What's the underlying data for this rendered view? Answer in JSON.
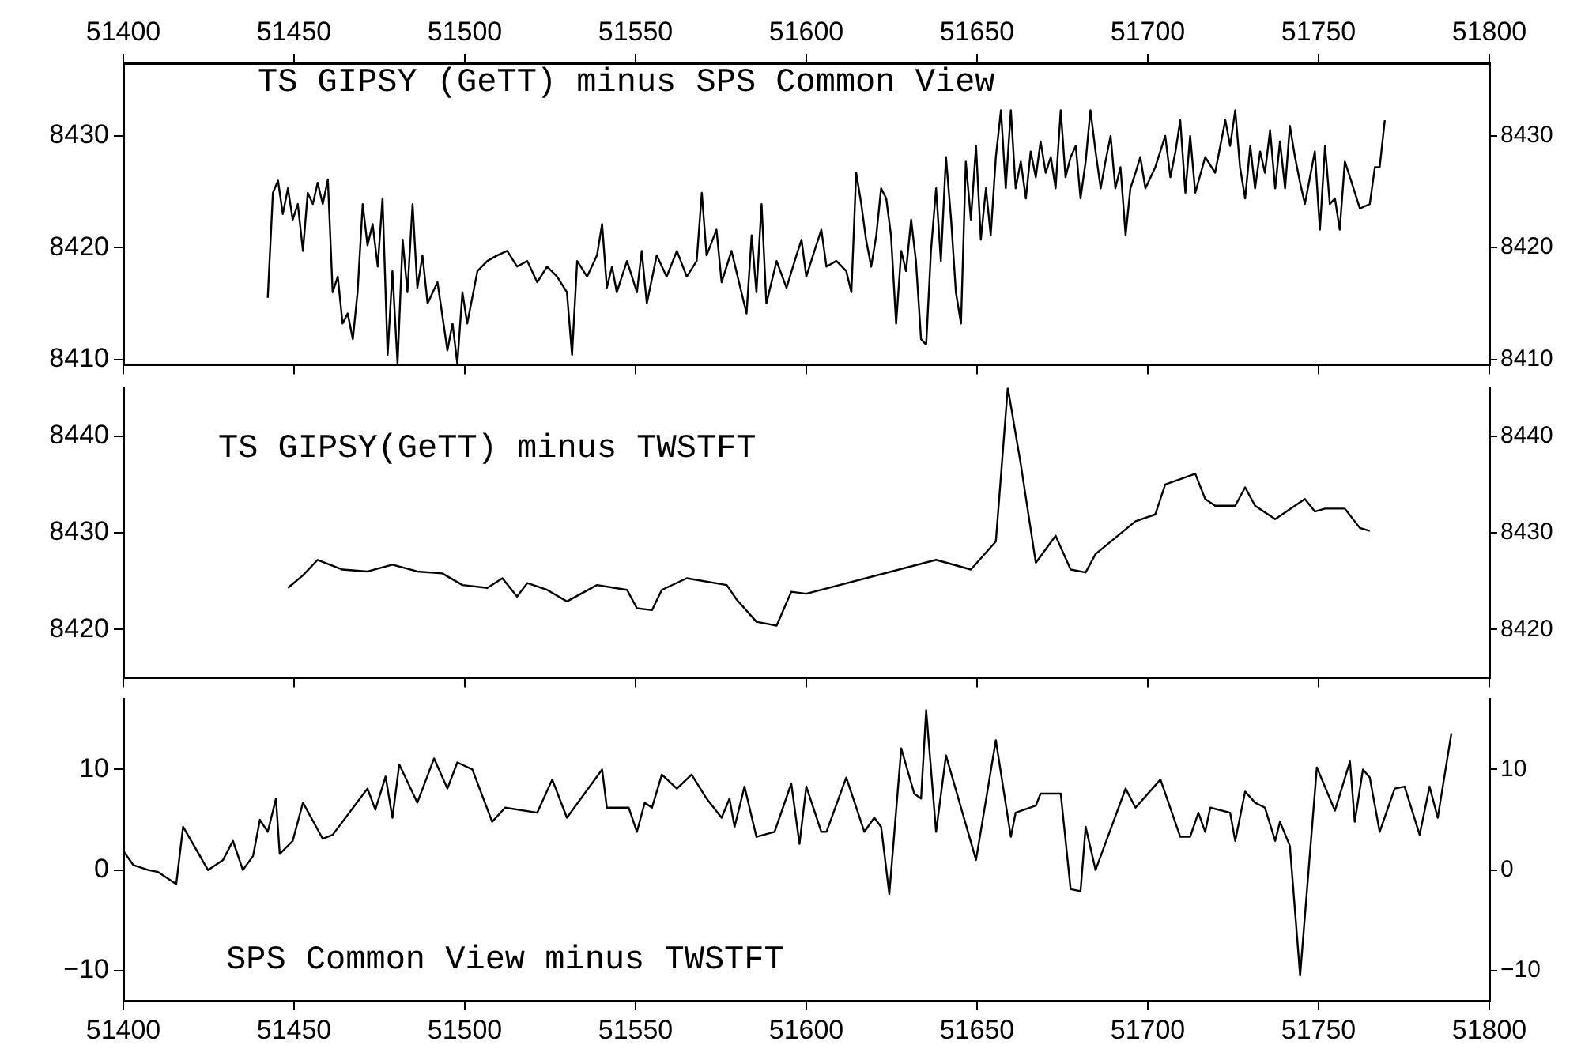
{
  "chart_data": [
    {
      "type": "line",
      "title": "TS GIPSY (GeTT) minus SPS Common View",
      "x": [
        51442.3,
        51443.8,
        51445.3,
        51446.7,
        51448.2,
        51449.6,
        51451.1,
        51452.6,
        51454.0,
        51455.5,
        51456.9,
        51458.4,
        51459.9,
        51461.3,
        51462.8,
        51464.2,
        51465.7,
        51467.2,
        51468.6,
        51470.1,
        51471.5,
        51473.0,
        51474.5,
        51475.9,
        51477.4,
        51478.8,
        51480.3,
        51481.8,
        51483.2,
        51484.7,
        51486.1,
        51487.6,
        51489.1,
        51492.0,
        51494.9,
        51496.4,
        51497.8,
        51499.3,
        51500.7,
        51503.7,
        51506.6,
        51509.5,
        51512.4,
        51515.3,
        51518.3,
        51521.2,
        51524.1,
        51527.0,
        51529.9,
        51531.4,
        51532.9,
        51535.8,
        51538.7,
        51540.2,
        51541.6,
        51543.1,
        51544.5,
        51547.5,
        51550.4,
        51551.8,
        51553.3,
        51556.2,
        51559.1,
        51562.1,
        51565.0,
        51567.9,
        51569.4,
        51570.8,
        51573.7,
        51575.2,
        51578.1,
        51581.0,
        51582.5,
        51584.0,
        51585.4,
        51586.9,
        51588.3,
        51591.3,
        51594.2,
        51597.1,
        51598.6,
        51600.0,
        51602.9,
        51604.4,
        51605.9,
        51608.8,
        51611.7,
        51613.2,
        51614.6,
        51616.1,
        51617.5,
        51619.0,
        51620.5,
        51621.9,
        51623.4,
        51624.8,
        51626.3,
        51627.8,
        51629.2,
        51630.7,
        51632.1,
        51633.6,
        51635.1,
        51636.5,
        51638.0,
        51639.4,
        51640.9,
        51642.4,
        51643.8,
        51645.3,
        51646.7,
        51648.2,
        51649.7,
        51651.1,
        51652.6,
        51654.0,
        51655.5,
        51657.0,
        51658.4,
        51659.9,
        51661.3,
        51662.8,
        51664.3,
        51665.7,
        51667.2,
        51668.6,
        51670.1,
        51671.6,
        51673.0,
        51674.5,
        51675.9,
        51677.4,
        51678.9,
        51680.3,
        51681.8,
        51683.2,
        51684.7,
        51686.2,
        51687.6,
        51689.1,
        51690.5,
        51692.0,
        51693.5,
        51694.9,
        51696.4,
        51697.8,
        51699.3,
        51702.2,
        51705.1,
        51706.6,
        51708.1,
        51709.5,
        51711.0,
        51712.4,
        51713.9,
        51716.8,
        51719.7,
        51722.7,
        51724.1,
        51725.6,
        51727.0,
        51728.5,
        51730.0,
        51731.4,
        51732.9,
        51734.3,
        51735.8,
        51737.3,
        51738.7,
        51740.2,
        51741.6,
        51743.1,
        51744.6,
        51746.0,
        51748.9,
        51750.4,
        51751.9,
        51753.3,
        51754.8,
        51756.2,
        51757.7,
        51759.2,
        51762.1,
        51765.0,
        51766.5,
        51767.9,
        51769.4
      ],
      "series": [
        {
          "color": "#000000",
          "values": [
            8415.5,
            8424.9,
            8426.0,
            8423.0,
            8425.3,
            8422.5,
            8423.9,
            8419.7,
            8424.9,
            8423.9,
            8425.8,
            8423.9,
            8426.1,
            8416.0,
            8417.4,
            8413.2,
            8414.1,
            8411.8,
            8416.0,
            8423.9,
            8420.2,
            8422.1,
            8418.3,
            8424.4,
            8410.4,
            8417.9,
            8409.6,
            8420.7,
            8416.0,
            8423.9,
            8416.4,
            8419.3,
            8415.0,
            8416.9,
            8410.8,
            8413.2,
            8409.6,
            8416.0,
            8413.2,
            8417.9,
            8418.8,
            8419.3,
            8419.7,
            8418.3,
            8418.8,
            8416.9,
            8418.3,
            8417.4,
            8416.0,
            8410.4,
            8418.8,
            8417.4,
            8419.3,
            8422.1,
            8416.4,
            8418.3,
            8416.0,
            8418.8,
            8416.0,
            8419.7,
            8415.0,
            8419.3,
            8417.4,
            8419.7,
            8417.4,
            8418.8,
            8424.9,
            8419.3,
            8421.6,
            8416.9,
            8419.7,
            8416.0,
            8414.1,
            8421.1,
            8416.0,
            8423.9,
            8415.0,
            8418.8,
            8416.4,
            8419.3,
            8420.7,
            8417.4,
            8420.2,
            8421.6,
            8418.3,
            8418.8,
            8417.9,
            8416.0,
            8426.7,
            8423.9,
            8420.7,
            8418.3,
            8421.1,
            8425.3,
            8424.4,
            8421.1,
            8413.2,
            8419.7,
            8417.9,
            8422.5,
            8418.8,
            8411.8,
            8411.3,
            8419.7,
            8425.3,
            8418.8,
            8428.1,
            8422.5,
            8416.0,
            8413.2,
            8427.7,
            8422.5,
            8429.1,
            8420.7,
            8425.3,
            8421.1,
            8428.1,
            8432.3,
            8425.3,
            8432.3,
            8425.3,
            8427.7,
            8424.4,
            8428.6,
            8426.3,
            8429.5,
            8426.7,
            8428.1,
            8425.3,
            8432.3,
            8426.3,
            8428.1,
            8429.1,
            8424.4,
            8427.7,
            8432.3,
            8428.6,
            8425.3,
            8427.7,
            8430.0,
            8425.3,
            8427.2,
            8421.1,
            8425.3,
            8426.7,
            8428.1,
            8425.3,
            8427.2,
            8430.0,
            8426.3,
            8428.6,
            8431.4,
            8424.9,
            8430.0,
            8424.9,
            8428.1,
            8426.7,
            8431.4,
            8429.1,
            8432.3,
            8427.2,
            8424.4,
            8429.1,
            8425.3,
            8428.6,
            8426.7,
            8430.5,
            8425.3,
            8429.5,
            8425.3,
            8430.9,
            8428.1,
            8425.8,
            8423.9,
            8428.6,
            8421.6,
            8429.1,
            8423.9,
            8424.4,
            8421.6,
            8427.7,
            8426.3,
            8423.5,
            8423.9,
            8427.2,
            8427.2,
            8431.4
          ]
        }
      ],
      "xlim": [
        51400,
        51800
      ],
      "xticks": [
        51400,
        51450,
        51500,
        51550,
        51600,
        51650,
        51700,
        51750,
        51800
      ],
      "x2lim": [
        51400,
        51800
      ],
      "x2ticks": [
        51400,
        51450,
        51500,
        51550,
        51600,
        51650,
        51700,
        51750,
        51800
      ],
      "ylim": [
        8409.5,
        8436.5
      ],
      "yticks": [
        8410,
        8420,
        8430
      ],
      "y2lim": [
        8409.5,
        8436.5
      ],
      "y2ticks": [
        8410,
        8420,
        8430
      ],
      "tick_labels": "y"
    },
    {
      "type": "line",
      "title": "TS GIPSY(GeTT) minus TWSTFT",
      "x": [
        51448.2,
        51452.6,
        51456.9,
        51464.2,
        51471.5,
        51478.8,
        51486.1,
        51493.4,
        51499.3,
        51506.6,
        51511.0,
        51515.3,
        51518.3,
        51524.1,
        51529.9,
        51538.7,
        51547.5,
        51550.4,
        51554.8,
        51557.7,
        51565.0,
        51576.7,
        51579.6,
        51585.4,
        51591.3,
        51595.6,
        51600.0,
        51638.0,
        51648.2,
        51655.5,
        51659.0,
        51662.8,
        51667.2,
        51673.0,
        51677.4,
        51681.8,
        51684.7,
        51696.4,
        51702.2,
        51705.1,
        51713.9,
        51716.8,
        51719.7,
        51725.6,
        51728.5,
        51731.4,
        51737.3,
        51743.1,
        51746.0,
        51748.9,
        51751.9,
        51757.7,
        51762.1,
        51765.0
      ],
      "series": [
        {
          "color": "#000000",
          "values": [
            8424.3,
            8425.6,
            8427.2,
            8426.2,
            8426.0,
            8426.7,
            8426.0,
            8425.8,
            8424.6,
            8424.3,
            8425.3,
            8423.4,
            8424.8,
            8424.1,
            8422.9,
            8424.6,
            8424.1,
            8422.2,
            8422.0,
            8424.1,
            8425.3,
            8424.6,
            8423.1,
            8420.8,
            8420.4,
            8423.9,
            8423.7,
            8427.2,
            8426.2,
            8429.1,
            8445.0,
            8437.1,
            8426.9,
            8429.7,
            8426.2,
            8425.9,
            8427.8,
            8431.2,
            8431.9,
            8435.0,
            8436.1,
            8433.5,
            8432.8,
            8432.8,
            8434.7,
            8432.8,
            8431.4,
            8432.8,
            8433.5,
            8432.2,
            8432.5,
            8432.5,
            8430.5,
            8430.2
          ]
        }
      ],
      "xlim": [
        51400,
        51800
      ],
      "xticks": [
        51400,
        51450,
        51500,
        51550,
        51600,
        51650,
        51700,
        51750,
        51800
      ],
      "ylim": [
        8415,
        8445
      ],
      "yticks": [
        8420,
        8430,
        8440
      ],
      "y2lim": [
        8415,
        8445
      ],
      "y2ticks": [
        8420,
        8430,
        8440
      ],
      "tick_labels": "y"
    },
    {
      "type": "line",
      "title": "SPS Common View minus TWSTFT",
      "x": [
        51400.0,
        51402.9,
        51407.3,
        51410.2,
        51415.5,
        51417.5,
        51424.8,
        51429.2,
        51432.1,
        51435.0,
        51438.0,
        51440.0,
        51442.3,
        51444.7,
        51445.8,
        51449.6,
        51452.6,
        51458.4,
        51461.3,
        51471.5,
        51473.8,
        51476.8,
        51478.8,
        51480.8,
        51486.1,
        51491.0,
        51494.9,
        51497.8,
        51502.2,
        51508.0,
        51511.8,
        51521.2,
        51525.6,
        51529.9,
        51540.2,
        51541.6,
        51548.0,
        51550.4,
        51552.7,
        51554.8,
        51557.7,
        51562.1,
        51566.4,
        51570.8,
        51575.2,
        51577.5,
        51579.0,
        51581.9,
        51585.4,
        51590.7,
        51595.6,
        51598.0,
        51600.0,
        51604.4,
        51605.9,
        51611.7,
        51617.0,
        51619.9,
        51621.9,
        51624.3,
        51627.8,
        51631.6,
        51633.6,
        51635.1,
        51638.0,
        51640.9,
        51649.7,
        51655.5,
        51659.9,
        51661.3,
        51667.2,
        51668.6,
        51674.5,
        51677.4,
        51680.3,
        51681.8,
        51684.7,
        51693.5,
        51696.4,
        51703.7,
        51709.5,
        51712.4,
        51714.8,
        51716.8,
        51718.3,
        51724.1,
        51725.6,
        51728.5,
        51731.4,
        51734.3,
        51737.3,
        51738.7,
        51741.6,
        51744.6,
        51749.5,
        51754.8,
        51759.2,
        51760.6,
        51763.0,
        51765.0,
        51767.9,
        51772.3,
        51775.2,
        51779.6,
        51782.5,
        51784.9,
        51788.9
      ],
      "series": [
        {
          "color": "#000000",
          "values": [
            1.9,
            0.5,
            0,
            -0.2,
            -1.4,
            4.3,
            0,
            1.0,
            2.9,
            0,
            1.4,
            5.0,
            3.8,
            7.1,
            1.6,
            2.9,
            6.7,
            3.1,
            3.5,
            8.1,
            6.0,
            9.3,
            5.2,
            10.5,
            6.7,
            11.1,
            8.1,
            10.7,
            10.0,
            4.8,
            6.2,
            5.7,
            9.0,
            5.2,
            10.0,
            6.2,
            6.2,
            3.8,
            6.7,
            6.2,
            9.5,
            8.1,
            9.5,
            7.1,
            5.2,
            7.1,
            4.3,
            8.3,
            3.3,
            3.8,
            8.6,
            2.6,
            8.3,
            3.8,
            3.8,
            9.2,
            3.8,
            5.2,
            4.3,
            -2.4,
            12.1,
            7.6,
            7.1,
            15.9,
            3.8,
            11.4,
            1.0,
            12.9,
            3.3,
            5.7,
            6.4,
            7.6,
            7.6,
            -1.9,
            -2.1,
            4.3,
            0,
            8.1,
            6.2,
            9.0,
            3.3,
            3.3,
            5.7,
            3.8,
            6.2,
            5.7,
            2.9,
            7.8,
            6.7,
            6.2,
            2.9,
            4.8,
            2.4,
            -10.5,
            10.2,
            5.9,
            10.8,
            4.8,
            10.0,
            9.2,
            3.8,
            8.1,
            8.3,
            3.5,
            8.3,
            5.2,
            13.6
          ]
        }
      ],
      "xlim": [
        51400,
        51800
      ],
      "xticks": [
        51400,
        51450,
        51500,
        51550,
        51600,
        51650,
        51700,
        51750,
        51800
      ],
      "ylim": [
        -13,
        17
      ],
      "yticks": [
        {
          "value": -10,
          "label": "−10"
        },
        0,
        10
      ],
      "y2lim": [
        -13,
        17
      ],
      "y2ticks": [
        {
          "value": -10,
          "label": "−10"
        },
        0,
        10
      ]
    }
  ]
}
